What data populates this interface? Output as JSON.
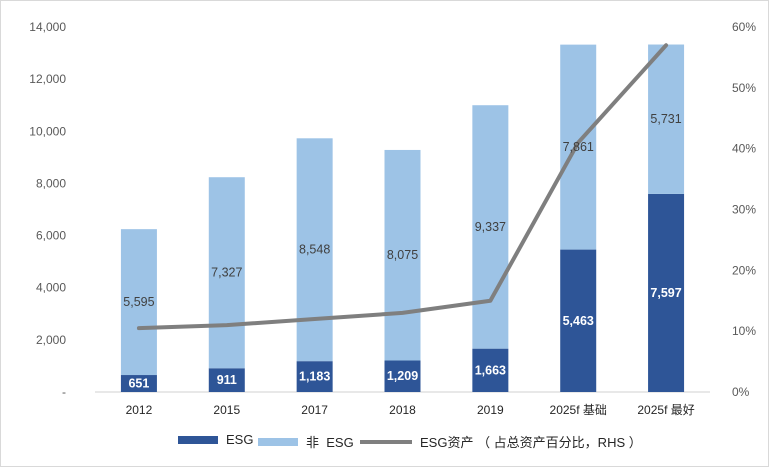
{
  "chart_data": {
    "type": "bar",
    "stacked": true,
    "categories": [
      "2012",
      "2015",
      "2017",
      "2018",
      "2019",
      "2025f 基础",
      "2025f 最好"
    ],
    "series": [
      {
        "name": "ESG",
        "color": "#2e5597",
        "values": [
          651,
          911,
          1183,
          1209,
          1663,
          5463,
          7597
        ]
      },
      {
        "name": "非  ESG",
        "color": "#9dc3e6",
        "values": [
          5595,
          7327,
          8548,
          8075,
          9337,
          7861,
          5731
        ]
      }
    ],
    "line_series": {
      "name": "ESG资产 （ 占总资产百分比，RHS ）",
      "color": "#7f7f7f",
      "axis": "right",
      "values": [
        10.5,
        11,
        12,
        13,
        15,
        41,
        57
      ]
    },
    "left_axis": {
      "min": 0,
      "max": 14000,
      "ticks": [
        "-",
        "2,000",
        "4,000",
        "6,000",
        "8,000",
        "10,000",
        "12,000",
        "14,000"
      ]
    },
    "right_axis": {
      "min": 0,
      "max": 60,
      "ticks": [
        "0%",
        "10%",
        "20%",
        "30%",
        "40%",
        "50%",
        "60%"
      ]
    },
    "data_labels": {
      "esg": [
        "651",
        "911",
        "1,183",
        "1,209",
        "1,663",
        "5,463",
        "7,597"
      ],
      "non_esg": [
        "5,595",
        "7,327",
        "8,548",
        "8,075",
        "9,337",
        "7,861",
        "5,731"
      ]
    },
    "grid": false,
    "legend_position": "bottom"
  },
  "legend": {
    "esg": "ESG",
    "non_esg": "非  ESG",
    "line": "ESG资产 （ 占总资产百分比，RHS ）"
  }
}
